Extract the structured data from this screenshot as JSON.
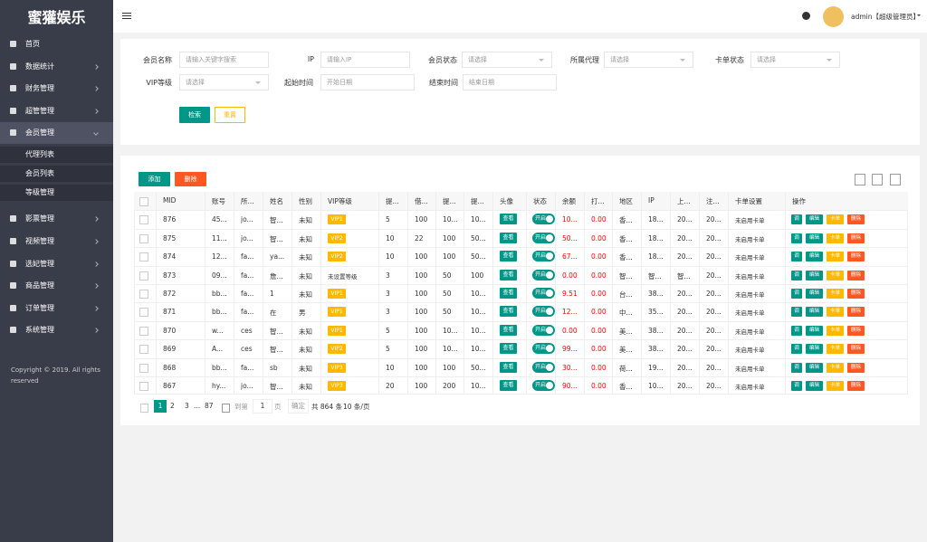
{
  "sidebar": {
    "logo": "蜜獾娱乐",
    "items": [
      "首页",
      "数据统计",
      "财务管理",
      "超管管理",
      "会员管理"
    ],
    "submenu": [
      "代理列表",
      "会员列表",
      "等级管理"
    ],
    "items_after": [
      "影票管理",
      "视频管理",
      "选妃管理",
      "商品管理",
      "订单管理",
      "系统管理"
    ],
    "copyright": [
      "Copyright © 2019. All rights",
      "reserved"
    ]
  },
  "header": {
    "user": "admin【超级管理员】"
  },
  "search": {
    "fields": [
      {
        "label": "会员名称",
        "placeholder": "请输入关键字搜索"
      },
      {
        "label": "IP",
        "placeholder": "请输入IP"
      },
      {
        "label": "会员状态",
        "placeholder": "请选择"
      },
      {
        "label": "所属代理",
        "placeholder": "请选择"
      },
      {
        "label": "卡单状态",
        "placeholder": "请选择"
      },
      {
        "label": "VIP等级",
        "placeholder": "请选择"
      },
      {
        "label": "起始时间",
        "placeholder": "开始日期"
      },
      {
        "label": "结束时间",
        "placeholder": "结束日期"
      }
    ],
    "submit": "检索",
    "reset": "重置"
  },
  "toolbar": {
    "add": "添加",
    "delete": "删除"
  },
  "table": {
    "headers": [
      "MID",
      "账号",
      "所...",
      "姓名",
      "性别",
      "VIP等级",
      "提...",
      "借...",
      "提...",
      "提...",
      "头像",
      "状态",
      "余额",
      "打...",
      "地区",
      "IP",
      "上...",
      "注...",
      "卡单设置",
      "操作"
    ],
    "actions": [
      "调",
      "编辑",
      "卡单",
      "删除"
    ],
    "rows": [
      [
        "876",
        "45...",
        "jo...",
        "智...",
        "未知",
        "VIP1",
        "5",
        "100",
        "10...",
        "10...",
        "查看",
        "开启",
        "10...",
        "0.00",
        "香...",
        "18...",
        "20...",
        "20...",
        "未启用卡单"
      ],
      [
        "875",
        "11...",
        "jo...",
        "智...",
        "未知",
        "VIP2",
        "10",
        "22",
        "100",
        "50...",
        "查看",
        "开启",
        "50...",
        "0.00",
        "香...",
        "18...",
        "20...",
        "20...",
        "未启用卡单"
      ],
      [
        "874",
        "12...",
        "fa...",
        "ya...",
        "未知",
        "VIP2",
        "10",
        "100",
        "100",
        "50...",
        "查看",
        "开启",
        "67...",
        "0.00",
        "香...",
        "18...",
        "20...",
        "20...",
        "未启用卡单"
      ],
      [
        "873",
        "09...",
        "fa...",
        "詹...",
        "未知",
        "未设置等级",
        "3",
        "100",
        "50",
        "100",
        "查看",
        "开启",
        "0.00",
        "0.00",
        "智...",
        "智...",
        "智...",
        "20...",
        "未启用卡单"
      ],
      [
        "872",
        "bb...",
        "fa...",
        "1",
        "未知",
        "VIP1",
        "3",
        "100",
        "50",
        "10...",
        "查看",
        "开启",
        "9.51",
        "0.00",
        "台...",
        "38...",
        "20...",
        "20...",
        "未启用卡单"
      ],
      [
        "871",
        "bb...",
        "fa...",
        "在",
        "男",
        "VIP1",
        "3",
        "100",
        "50",
        "10...",
        "查看",
        "开启",
        "12...",
        "0.00",
        "中...",
        "35...",
        "20...",
        "20...",
        "未启用卡单"
      ],
      [
        "870",
        "w...",
        "ces",
        "智...",
        "未知",
        "VIP1",
        "5",
        "100",
        "10...",
        "10...",
        "查看",
        "开启",
        "0.00",
        "0.00",
        "美...",
        "38...",
        "20...",
        "20...",
        "未启用卡单"
      ],
      [
        "869",
        "A...",
        "ces",
        "智...",
        "未知",
        "VIP2",
        "5",
        "100",
        "10...",
        "10...",
        "查看",
        "开启",
        "99...",
        "0.00",
        "美...",
        "38...",
        "20...",
        "20...",
        "未启用卡单"
      ],
      [
        "868",
        "bb...",
        "fa...",
        "sb",
        "未知",
        "VIP3",
        "10",
        "100",
        "100",
        "50...",
        "查看",
        "开启",
        "30...",
        "0.00",
        "荷...",
        "19...",
        "20...",
        "20...",
        "未启用卡单"
      ],
      [
        "867",
        "hy...",
        "jo...",
        "智...",
        "未知",
        "VIP3",
        "20",
        "100",
        "200",
        "10...",
        "查看",
        "开启",
        "90...",
        "0.00",
        "香...",
        "10...",
        "20...",
        "20...",
        "未启用卡单"
      ]
    ]
  },
  "pagination": {
    "pages": [
      "1",
      "2",
      "3",
      "...",
      "87"
    ],
    "goto": "到第",
    "page_input": "1",
    "page_unit": "页",
    "confirm": "确定",
    "total": "共 864 条",
    "per_page": "10 条/页"
  }
}
